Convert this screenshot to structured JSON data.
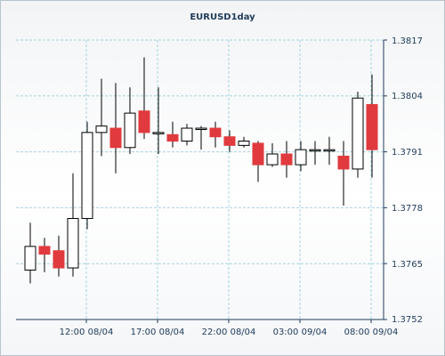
{
  "chart_data": {
    "type": "candlestick",
    "title": "EURUSD1day",
    "grid": true,
    "legend": "none",
    "ylim": [
      1.3752,
      1.3817
    ],
    "y_ticks": [
      "1.3817",
      "1.3804",
      "1.3791",
      "1.3778",
      "1.3765",
      "1.3752"
    ],
    "x_tick_labels": [
      "12:00 08/04",
      "17:00 08/04",
      "22:00 08/04",
      "03:00 09/04",
      "08:00 09/04"
    ],
    "colors": {
      "up_fill": "#ffffff",
      "down_fill": "#e03a3e",
      "body_edge": "#000000",
      "grid": "#a8d4dc",
      "axis": "#1f3a5a"
    },
    "candles": [
      {
        "o": 1.37635,
        "h": 1.37745,
        "l": 1.37604,
        "c": 1.3769
      },
      {
        "o": 1.3769,
        "h": 1.3771,
        "l": 1.3763,
        "c": 1.37672
      },
      {
        "o": 1.3768,
        "h": 1.37715,
        "l": 1.3762,
        "c": 1.3764
      },
      {
        "o": 1.3764,
        "h": 1.3786,
        "l": 1.3762,
        "c": 1.37755
      },
      {
        "o": 1.37755,
        "h": 1.3798,
        "l": 1.3773,
        "c": 1.37955
      },
      {
        "o": 1.37955,
        "h": 1.3808,
        "l": 1.379,
        "c": 1.3797
      },
      {
        "o": 1.37965,
        "h": 1.3807,
        "l": 1.3786,
        "c": 1.3792
      },
      {
        "o": 1.3792,
        "h": 1.3806,
        "l": 1.37905,
        "c": 1.38
      },
      {
        "o": 1.38005,
        "h": 1.3813,
        "l": 1.3794,
        "c": 1.37955
      },
      {
        "o": 1.37955,
        "h": 1.3806,
        "l": 1.37905,
        "c": 1.37955
      },
      {
        "o": 1.3795,
        "h": 1.3798,
        "l": 1.3792,
        "c": 1.37935
      },
      {
        "o": 1.37935,
        "h": 1.37975,
        "l": 1.37925,
        "c": 1.37965
      },
      {
        "o": 1.37965,
        "h": 1.3797,
        "l": 1.37915,
        "c": 1.37965
      },
      {
        "o": 1.37965,
        "h": 1.3798,
        "l": 1.3792,
        "c": 1.37945
      },
      {
        "o": 1.37945,
        "h": 1.3796,
        "l": 1.3791,
        "c": 1.37925
      },
      {
        "o": 1.37925,
        "h": 1.37945,
        "l": 1.3792,
        "c": 1.37935
      },
      {
        "o": 1.3793,
        "h": 1.37935,
        "l": 1.3784,
        "c": 1.3788
      },
      {
        "o": 1.3788,
        "h": 1.3793,
        "l": 1.37875,
        "c": 1.37905
      },
      {
        "o": 1.37905,
        "h": 1.37935,
        "l": 1.3785,
        "c": 1.3788
      },
      {
        "o": 1.3788,
        "h": 1.37935,
        "l": 1.37865,
        "c": 1.37915
      },
      {
        "o": 1.37915,
        "h": 1.37935,
        "l": 1.3788,
        "c": 1.37915
      },
      {
        "o": 1.37915,
        "h": 1.37945,
        "l": 1.3788,
        "c": 1.37915
      },
      {
        "o": 1.379,
        "h": 1.37935,
        "l": 1.37785,
        "c": 1.3787
      },
      {
        "o": 1.3787,
        "h": 1.3805,
        "l": 1.3785,
        "c": 1.38035
      },
      {
        "o": 1.3802,
        "h": 1.3809,
        "l": 1.3785,
        "c": 1.37915
      }
    ]
  }
}
